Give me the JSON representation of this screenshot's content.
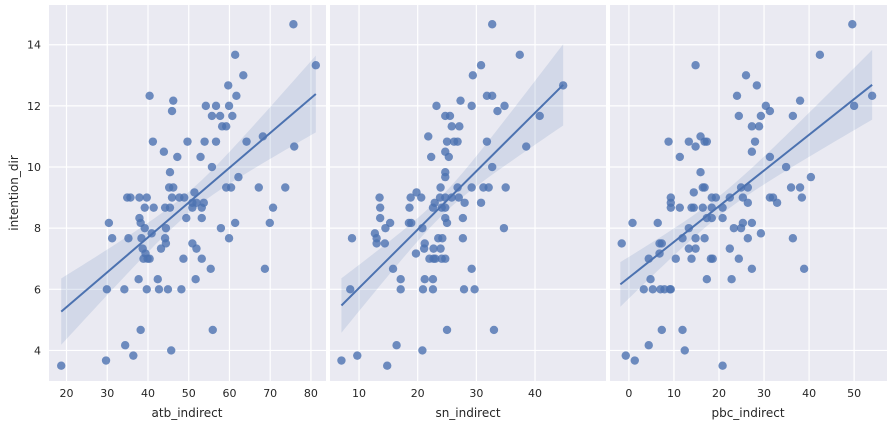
{
  "chart_data": [
    {
      "type": "scatter",
      "xlabel": "atb_indirect",
      "ylabel": "intention_dir",
      "xticks": [
        20,
        30,
        40,
        50,
        60,
        70,
        80
      ],
      "yticks": [
        4,
        6,
        8,
        10,
        12,
        14
      ],
      "ylim": [
        3,
        15.3
      ],
      "xlim": [
        15.7,
        83.7
      ],
      "grid": true,
      "color": "#4c72b0",
      "regression": {
        "x": [
          18.7,
          81.2
        ],
        "y": [
          5.27,
          12.39
        ]
      },
      "ci": {
        "x": [
          18.7,
          50,
          81.2
        ],
        "lower": [
          4.15,
          8.5,
          11.16
        ],
        "upper": [
          6.32,
          9.2,
          13.67
        ]
      },
      "points": [
        [
          75.7,
          14.67
        ],
        [
          81.2,
          13.33
        ],
        [
          61.4,
          13.67
        ],
        [
          63.4,
          13.0
        ],
        [
          59.7,
          12.67
        ],
        [
          61.7,
          12.33
        ],
        [
          40.4,
          12.33
        ],
        [
          46.2,
          12.17
        ],
        [
          45.9,
          11.83
        ],
        [
          54.2,
          12.0
        ],
        [
          56.7,
          12.0
        ],
        [
          59.9,
          12.0
        ],
        [
          55.7,
          11.67
        ],
        [
          57.7,
          11.67
        ],
        [
          60.7,
          11.67
        ],
        [
          58.2,
          11.33
        ],
        [
          59.2,
          11.33
        ],
        [
          68.2,
          11.0
        ],
        [
          41.2,
          10.83
        ],
        [
          49.7,
          10.83
        ],
        [
          53.9,
          10.83
        ],
        [
          56.7,
          10.83
        ],
        [
          64.2,
          10.83
        ],
        [
          75.9,
          10.67
        ],
        [
          43.9,
          10.5
        ],
        [
          47.2,
          10.33
        ],
        [
          52.9,
          10.33
        ],
        [
          55.7,
          10.0
        ],
        [
          45.4,
          9.83
        ],
        [
          62.2,
          9.67
        ],
        [
          45.2,
          9.33
        ],
        [
          46.2,
          9.33
        ],
        [
          59.2,
          9.33
        ],
        [
          60.4,
          9.33
        ],
        [
          67.2,
          9.33
        ],
        [
          73.7,
          9.33
        ],
        [
          34.9,
          9.0
        ],
        [
          35.7,
          9.0
        ],
        [
          37.9,
          9.0
        ],
        [
          39.7,
          9.0
        ],
        [
          45.9,
          9.0
        ],
        [
          47.7,
          9.0
        ],
        [
          48.9,
          9.0
        ],
        [
          51.4,
          9.17
        ],
        [
          50.9,
          8.83
        ],
        [
          51.9,
          8.83
        ],
        [
          53.7,
          8.83
        ],
        [
          39.2,
          8.67
        ],
        [
          41.4,
          8.67
        ],
        [
          44.2,
          8.67
        ],
        [
          45.4,
          8.67
        ],
        [
          50.9,
          8.67
        ],
        [
          53.2,
          8.67
        ],
        [
          70.7,
          8.67
        ],
        [
          37.9,
          8.33
        ],
        [
          49.4,
          8.33
        ],
        [
          53.2,
          8.33
        ],
        [
          30.4,
          8.17
        ],
        [
          38.2,
          8.17
        ],
        [
          61.4,
          8.17
        ],
        [
          69.9,
          8.17
        ],
        [
          39.2,
          8.0
        ],
        [
          44.4,
          8.0
        ],
        [
          57.9,
          8.0
        ],
        [
          40.9,
          7.83
        ],
        [
          31.2,
          7.67
        ],
        [
          35.2,
          7.67
        ],
        [
          38.4,
          7.67
        ],
        [
          44.2,
          7.67
        ],
        [
          59.9,
          7.67
        ],
        [
          44.4,
          7.5
        ],
        [
          50.9,
          7.5
        ],
        [
          38.7,
          7.33
        ],
        [
          43.2,
          7.33
        ],
        [
          51.9,
          7.33
        ],
        [
          39.4,
          7.17
        ],
        [
          38.9,
          7.0
        ],
        [
          39.9,
          7.0
        ],
        [
          40.4,
          7.0
        ],
        [
          48.7,
          7.0
        ],
        [
          53.2,
          7.0
        ],
        [
          55.4,
          6.67
        ],
        [
          68.7,
          6.67
        ],
        [
          37.7,
          6.33
        ],
        [
          42.4,
          6.33
        ],
        [
          51.7,
          6.33
        ],
        [
          29.9,
          6.0
        ],
        [
          34.2,
          6.0
        ],
        [
          39.7,
          6.0
        ],
        [
          42.7,
          6.0
        ],
        [
          44.9,
          6.0
        ],
        [
          48.2,
          6.0
        ],
        [
          38.2,
          4.67
        ],
        [
          55.9,
          4.67
        ],
        [
          34.4,
          4.17
        ],
        [
          45.7,
          4.0
        ],
        [
          36.4,
          3.83
        ],
        [
          29.7,
          3.67
        ],
        [
          18.7,
          3.5
        ]
      ]
    },
    {
      "type": "scatter",
      "xlabel": "sn_indirect",
      "xticks": [
        10,
        20,
        30,
        40
      ],
      "yticks": [
        4,
        6,
        8,
        10,
        12,
        14
      ],
      "ylim": [
        3,
        15.3
      ],
      "xlim": [
        5.05,
        52.1
      ],
      "grid": true,
      "color": "#4c72b0",
      "regression": {
        "x": [
          7.0,
          44.8
        ],
        "y": [
          5.47,
          12.69
        ]
      },
      "ci": {
        "x": [
          7.0,
          24,
          44.8
        ],
        "lower": [
          4.57,
          8.3,
          11.37
        ],
        "upper": [
          6.35,
          8.95,
          14.03
        ]
      },
      "points": [
        [
          32.7,
          14.67
        ],
        [
          37.4,
          13.67
        ],
        [
          30.8,
          13.33
        ],
        [
          29.4,
          13.0
        ],
        [
          44.8,
          12.67
        ],
        [
          31.8,
          12.33
        ],
        [
          32.7,
          12.33
        ],
        [
          27.3,
          12.17
        ],
        [
          23.2,
          12.0
        ],
        [
          29.2,
          12.0
        ],
        [
          34.8,
          12.0
        ],
        [
          33.6,
          11.83
        ],
        [
          24.7,
          11.67
        ],
        [
          25.5,
          11.67
        ],
        [
          40.8,
          11.67
        ],
        [
          25.8,
          11.33
        ],
        [
          27.1,
          11.33
        ],
        [
          21.8,
          11.0
        ],
        [
          25.0,
          10.83
        ],
        [
          26.2,
          10.83
        ],
        [
          26.8,
          10.83
        ],
        [
          31.8,
          10.83
        ],
        [
          38.5,
          10.67
        ],
        [
          24.7,
          10.5
        ],
        [
          22.3,
          10.33
        ],
        [
          25.3,
          10.33
        ],
        [
          32.7,
          10.0
        ],
        [
          24.7,
          9.83
        ],
        [
          24.7,
          9.67
        ],
        [
          23.9,
          9.33
        ],
        [
          26.8,
          9.33
        ],
        [
          29.2,
          9.33
        ],
        [
          31.2,
          9.33
        ],
        [
          32.1,
          9.33
        ],
        [
          35.0,
          9.33
        ],
        [
          19.8,
          9.17
        ],
        [
          13.5,
          9.0
        ],
        [
          18.8,
          9.0
        ],
        [
          20.6,
          9.0
        ],
        [
          23.8,
          9.0
        ],
        [
          24.7,
          9.0
        ],
        [
          25.8,
          9.0
        ],
        [
          27.0,
          9.0
        ],
        [
          22.9,
          8.83
        ],
        [
          28.0,
          8.83
        ],
        [
          30.8,
          8.83
        ],
        [
          13.6,
          8.67
        ],
        [
          18.6,
          8.67
        ],
        [
          22.6,
          8.67
        ],
        [
          24.1,
          8.67
        ],
        [
          24.7,
          8.67
        ],
        [
          13.6,
          8.33
        ],
        [
          24.7,
          8.33
        ],
        [
          27.7,
          8.33
        ],
        [
          15.3,
          8.17
        ],
        [
          18.5,
          8.17
        ],
        [
          18.9,
          8.17
        ],
        [
          25.0,
          8.17
        ],
        [
          14.5,
          8.0
        ],
        [
          20.8,
          8.0
        ],
        [
          34.7,
          8.0
        ],
        [
          12.7,
          7.83
        ],
        [
          8.8,
          7.67
        ],
        [
          13.0,
          7.67
        ],
        [
          23.5,
          7.67
        ],
        [
          24.2,
          7.67
        ],
        [
          27.7,
          7.67
        ],
        [
          13.0,
          7.5
        ],
        [
          14.4,
          7.5
        ],
        [
          21.2,
          7.5
        ],
        [
          21.1,
          7.33
        ],
        [
          22.7,
          7.33
        ],
        [
          23.9,
          7.33
        ],
        [
          19.7,
          7.17
        ],
        [
          22.0,
          7.0
        ],
        [
          22.7,
          7.0
        ],
        [
          23.0,
          7.0
        ],
        [
          24.1,
          7.0
        ],
        [
          24.7,
          7.0
        ],
        [
          15.8,
          6.67
        ],
        [
          29.2,
          6.67
        ],
        [
          17.1,
          6.33
        ],
        [
          21.2,
          6.33
        ],
        [
          22.6,
          6.33
        ],
        [
          8.5,
          6.0
        ],
        [
          17.1,
          6.0
        ],
        [
          20.9,
          6.0
        ],
        [
          22.6,
          6.0
        ],
        [
          27.9,
          6.0
        ],
        [
          29.7,
          6.0
        ],
        [
          25.0,
          4.67
        ],
        [
          33.0,
          4.67
        ],
        [
          16.4,
          4.17
        ],
        [
          20.8,
          4.0
        ],
        [
          9.7,
          3.83
        ],
        [
          7.0,
          3.67
        ],
        [
          14.8,
          3.5
        ]
      ]
    },
    {
      "type": "scatter",
      "xlabel": "pbc_indirect",
      "xticks": [
        0,
        10,
        20,
        30,
        40,
        50
      ],
      "yticks": [
        4,
        6,
        8,
        10,
        12,
        14
      ],
      "ylim": [
        3,
        15.3
      ],
      "xlim": [
        -4.2,
        57.3
      ],
      "grid": true,
      "color": "#4c72b0",
      "regression": {
        "x": [
          -1.9,
          54.0
        ],
        "y": [
          6.16,
          12.69
        ]
      },
      "ci": {
        "x": [
          -1.9,
          20,
          54.0
        ],
        "lower": [
          5.44,
          8.05,
          11.46
        ],
        "upper": [
          6.9,
          8.7,
          13.74
        ]
      },
      "points": [
        [
          49.6,
          14.67
        ],
        [
          42.4,
          13.67
        ],
        [
          14.8,
          13.33
        ],
        [
          26.0,
          13.0
        ],
        [
          28.4,
          12.67
        ],
        [
          54.0,
          12.33
        ],
        [
          24.0,
          12.33
        ],
        [
          38.0,
          12.17
        ],
        [
          30.4,
          12.0
        ],
        [
          50.0,
          12.0
        ],
        [
          31.3,
          11.83
        ],
        [
          24.4,
          11.67
        ],
        [
          29.3,
          11.67
        ],
        [
          36.4,
          11.67
        ],
        [
          27.3,
          11.33
        ],
        [
          28.9,
          11.33
        ],
        [
          15.9,
          11.0
        ],
        [
          8.8,
          10.83
        ],
        [
          13.3,
          10.83
        ],
        [
          16.8,
          10.83
        ],
        [
          17.3,
          10.83
        ],
        [
          28.0,
          10.83
        ],
        [
          14.8,
          10.67
        ],
        [
          27.3,
          10.5
        ],
        [
          11.3,
          10.33
        ],
        [
          31.3,
          10.33
        ],
        [
          34.9,
          10.0
        ],
        [
          15.9,
          9.83
        ],
        [
          40.4,
          9.67
        ],
        [
          16.4,
          9.33
        ],
        [
          16.8,
          9.33
        ],
        [
          24.9,
          9.33
        ],
        [
          26.4,
          9.33
        ],
        [
          36.0,
          9.33
        ],
        [
          38.0,
          9.33
        ],
        [
          14.4,
          9.17
        ],
        [
          9.3,
          9.0
        ],
        [
          18.4,
          9.0
        ],
        [
          19.3,
          9.0
        ],
        [
          22.4,
          9.0
        ],
        [
          25.3,
          9.0
        ],
        [
          31.3,
          9.0
        ],
        [
          32.0,
          9.0
        ],
        [
          38.4,
          9.0
        ],
        [
          9.3,
          8.83
        ],
        [
          26.4,
          8.83
        ],
        [
          32.9,
          8.83
        ],
        [
          9.3,
          8.67
        ],
        [
          11.3,
          8.67
        ],
        [
          13.9,
          8.67
        ],
        [
          14.4,
          8.67
        ],
        [
          16.4,
          8.67
        ],
        [
          18.4,
          8.67
        ],
        [
          20.8,
          8.67
        ],
        [
          17.3,
          8.33
        ],
        [
          18.4,
          8.33
        ],
        [
          20.8,
          8.33
        ],
        [
          0.8,
          8.17
        ],
        [
          6.4,
          8.17
        ],
        [
          25.3,
          8.17
        ],
        [
          27.3,
          8.17
        ],
        [
          13.3,
          8.0
        ],
        [
          23.3,
          8.0
        ],
        [
          24.9,
          8.0
        ],
        [
          29.3,
          7.83
        ],
        [
          11.9,
          7.67
        ],
        [
          14.8,
          7.67
        ],
        [
          16.8,
          7.67
        ],
        [
          26.4,
          7.67
        ],
        [
          36.4,
          7.67
        ],
        [
          -1.6,
          7.5
        ],
        [
          6.8,
          7.5
        ],
        [
          7.3,
          7.5
        ],
        [
          13.3,
          7.33
        ],
        [
          14.8,
          7.33
        ],
        [
          22.4,
          7.33
        ],
        [
          6.8,
          7.17
        ],
        [
          4.4,
          7.0
        ],
        [
          10.4,
          7.0
        ],
        [
          13.9,
          7.0
        ],
        [
          18.2,
          7.0
        ],
        [
          18.6,
          7.0
        ],
        [
          24.4,
          7.0
        ],
        [
          27.3,
          6.67
        ],
        [
          38.9,
          6.67
        ],
        [
          4.8,
          6.33
        ],
        [
          17.3,
          6.33
        ],
        [
          22.8,
          6.33
        ],
        [
          3.3,
          6.0
        ],
        [
          5.3,
          6.0
        ],
        [
          7.0,
          6.0
        ],
        [
          7.9,
          6.0
        ],
        [
          9.1,
          6.0
        ],
        [
          9.3,
          6.0
        ],
        [
          7.3,
          4.67
        ],
        [
          11.9,
          4.67
        ],
        [
          4.4,
          4.17
        ],
        [
          12.4,
          4.0
        ],
        [
          -0.7,
          3.83
        ],
        [
          1.3,
          3.67
        ],
        [
          20.8,
          3.5
        ]
      ]
    }
  ]
}
